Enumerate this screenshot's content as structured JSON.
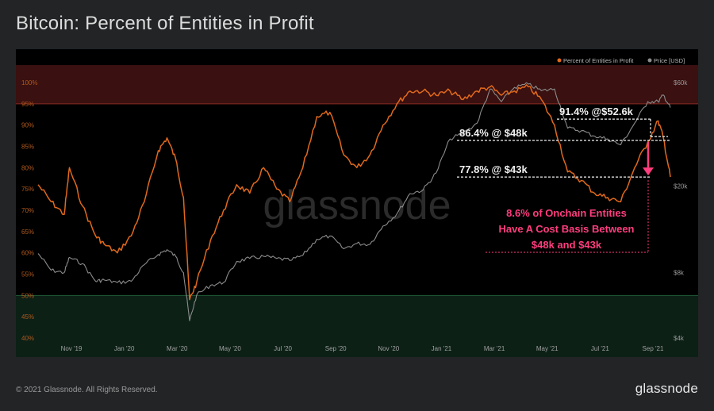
{
  "page": {
    "title": "Bitcoin: Percent of Entities in Profit",
    "copyright": "© 2021 Glassnode. All Rights Reserved.",
    "brand": "glassnode",
    "watermark": "glassnode"
  },
  "colors": {
    "background": "#222426",
    "plot_bg": "#000000",
    "profit_line": "#e0691c",
    "price_line": "#8c8c8c",
    "upper_band": "#3a1010",
    "lower_band": "#0c2016",
    "annotation": "#f0f0f0",
    "highlight": "#ff3d7f"
  },
  "chart_data": {
    "type": "line",
    "legend": {
      "position": "top-right",
      "entries": [
        "Percent of Entities in Profit",
        "Price [USD]"
      ]
    },
    "x_ticks": [
      "Nov '19",
      "Jan '20",
      "Mar '20",
      "May '20",
      "Jul '20",
      "Sep '20",
      "Nov '20",
      "Jan '21",
      "Mar '21",
      "May '21",
      "Jul '21",
      "Sep '21"
    ],
    "y_left": {
      "ticks": [
        "40%",
        "45%",
        "50%",
        "55%",
        "60%",
        "65%",
        "70%",
        "75%",
        "80%",
        "85%",
        "90%",
        "95%",
        "100%"
      ],
      "min": 40,
      "max": 100
    },
    "y_right": {
      "scale": "log",
      "ticks": [
        "$4k",
        "$8k",
        "$20k",
        "$60k"
      ]
    },
    "bands": [
      {
        "label": "upper",
        "from": 95,
        "to": 100
      },
      {
        "label": "lower",
        "from": 40,
        "to": 50
      }
    ],
    "series": [
      {
        "name": "Percent of Entities in Profit",
        "axis": "left",
        "x": [
          "2019-09-20",
          "2019-10-05",
          "2019-10-20",
          "2019-10-26",
          "2019-11-10",
          "2019-11-25",
          "2019-12-05",
          "2019-12-20",
          "2020-01-05",
          "2020-01-20",
          "2020-02-05",
          "2020-02-15",
          "2020-02-25",
          "2020-03-05",
          "2020-03-12",
          "2020-03-20",
          "2020-04-05",
          "2020-04-20",
          "2020-05-05",
          "2020-05-20",
          "2020-06-05",
          "2020-06-20",
          "2020-07-05",
          "2020-07-20",
          "2020-08-05",
          "2020-08-20",
          "2020-09-05",
          "2020-09-20",
          "2020-10-05",
          "2020-10-20",
          "2020-11-05",
          "2020-11-20",
          "2020-12-05",
          "2020-12-20",
          "2021-01-05",
          "2021-01-20",
          "2021-02-05",
          "2021-02-20",
          "2021-03-05",
          "2021-03-20",
          "2021-04-05",
          "2021-04-20",
          "2021-05-05",
          "2021-05-20",
          "2021-06-05",
          "2021-06-20",
          "2021-07-05",
          "2021-07-20",
          "2021-08-05",
          "2021-08-20",
          "2021-09-01",
          "2021-09-07",
          "2021-09-15"
        ],
        "values": [
          76,
          72,
          69,
          80,
          71,
          64,
          62,
          60,
          64,
          72,
          84,
          87,
          82,
          73,
          49,
          53,
          63,
          70,
          76,
          74,
          80,
          75,
          72,
          80,
          92,
          93,
          83,
          80,
          83,
          90,
          95,
          98,
          98,
          97,
          98,
          96,
          98,
          99,
          97,
          98,
          99,
          96,
          90,
          79,
          77,
          74,
          73,
          72,
          80,
          86,
          91,
          87,
          77.8
        ]
      },
      {
        "name": "Price [USD]",
        "axis": "right",
        "x": [
          "2019-09-20",
          "2019-10-05",
          "2019-10-20",
          "2019-10-26",
          "2019-11-10",
          "2019-11-25",
          "2019-12-05",
          "2019-12-20",
          "2020-01-05",
          "2020-01-20",
          "2020-02-05",
          "2020-02-15",
          "2020-02-25",
          "2020-03-05",
          "2020-03-12",
          "2020-03-20",
          "2020-04-05",
          "2020-04-20",
          "2020-05-05",
          "2020-05-20",
          "2020-06-05",
          "2020-06-20",
          "2020-07-05",
          "2020-07-20",
          "2020-08-05",
          "2020-08-20",
          "2020-09-05",
          "2020-09-20",
          "2020-10-05",
          "2020-10-20",
          "2020-11-05",
          "2020-11-20",
          "2020-12-05",
          "2020-12-20",
          "2021-01-05",
          "2021-01-20",
          "2021-02-05",
          "2021-02-20",
          "2021-03-05",
          "2021-03-20",
          "2021-04-05",
          "2021-04-20",
          "2021-05-05",
          "2021-05-20",
          "2021-06-05",
          "2021-06-20",
          "2021-07-05",
          "2021-07-20",
          "2021-08-05",
          "2021-08-20",
          "2021-09-01",
          "2021-09-07",
          "2021-09-15"
        ],
        "values": [
          9800,
          8200,
          8000,
          9400,
          8800,
          7300,
          7400,
          7200,
          7300,
          8700,
          9700,
          10200,
          9500,
          8000,
          4800,
          6300,
          7000,
          7200,
          9000,
          9300,
          9500,
          9300,
          9100,
          9600,
          11400,
          11800,
          10300,
          10900,
          10800,
          13100,
          14900,
          18500,
          19200,
          23000,
          33000,
          35000,
          39000,
          56000,
          49000,
          57000,
          59000,
          55000,
          56000,
          37000,
          36000,
          34000,
          33000,
          31000,
          39000,
          49000,
          49000,
          52600,
          46000
        ]
      }
    ],
    "annotations": [
      {
        "text": "91.4% @$52.6k",
        "level": 91.4
      },
      {
        "text": "86.4% @ $48k",
        "level": 86.4
      },
      {
        "text": "77.8% @ $43k",
        "level": 77.8
      }
    ],
    "callout": [
      "8.6% of Onchain Entities",
      "Have A Cost Basis Between",
      "$48k and $43k"
    ]
  }
}
